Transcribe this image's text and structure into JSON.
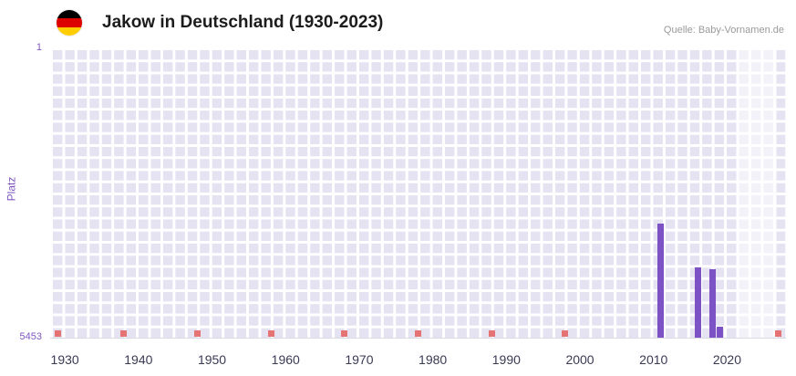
{
  "header": {
    "title": "Jakow in Deutschland (1930-2023)",
    "source": "Quelle: Baby-Vornamen.de",
    "flag_colors": [
      "#000000",
      "#dd0000",
      "#ffce00"
    ]
  },
  "colors": {
    "bar": "#7c52c4",
    "marker": "#e57373",
    "plot_bg": "#e5e2f2",
    "grid_line": "#ffffff",
    "band": "rgba(255,255,255,0.55)",
    "axis_purple": "#7e57c2",
    "tick_text": "#3a3a55",
    "title_text": "#1c1c1c",
    "source_text": "#9a9a9a",
    "baseline": "#d9d9e3"
  },
  "chart_data": {
    "type": "bar",
    "title": "Jakow in Deutschland (1930-2023)",
    "xlabel": "",
    "ylabel": "Platz",
    "y_axis": {
      "min": 1,
      "max": 5453,
      "top_label": "1",
      "bottom_label": "5453",
      "inverted": true
    },
    "x_range": [
      1928,
      2028
    ],
    "x_ticks": [
      1930,
      1940,
      1950,
      1960,
      1970,
      1980,
      1990,
      2000,
      2010,
      2020
    ],
    "bars": [
      {
        "year": 2011,
        "rank": 3310
      },
      {
        "year": 2016,
        "rank": 4140
      },
      {
        "year": 2018,
        "rank": 4170
      },
      {
        "year": 2019,
        "rank": 5250
      }
    ],
    "baseline_marker_years": [
      1929,
      1938,
      1948,
      1958,
      1968,
      1978,
      1988,
      1998,
      2027
    ],
    "highlight_band": {
      "from": 2021.5,
      "to": 2026.8
    },
    "grid": true,
    "legend": false
  }
}
